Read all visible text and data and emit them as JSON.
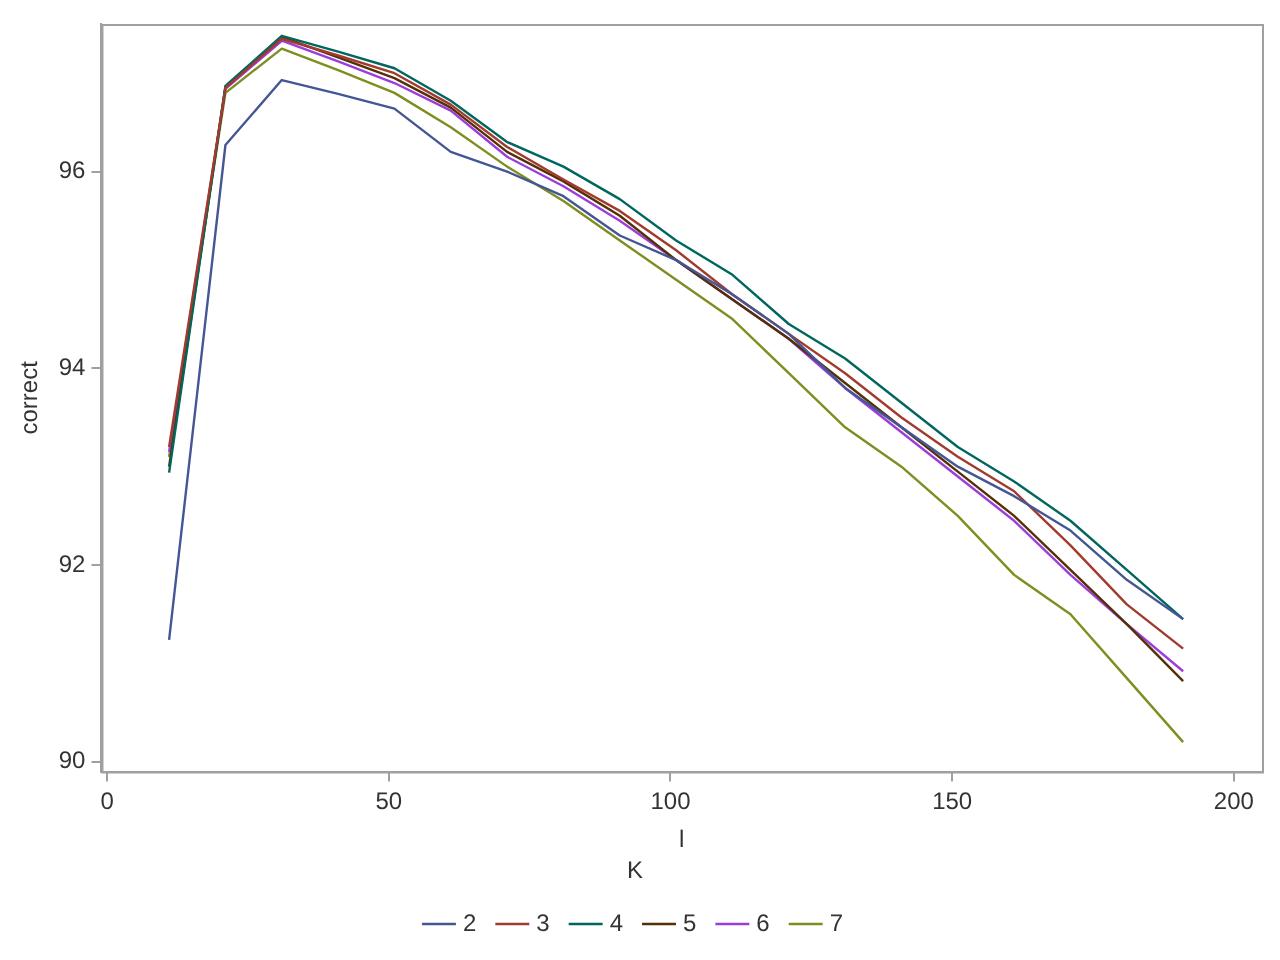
{
  "chart_data": {
    "type": "line",
    "xlabel": "l",
    "ylabel": "correct",
    "legend_title": "K",
    "legend": "bottom",
    "grid": false,
    "marker": "none",
    "line_style": "solid",
    "x": [
      11,
      21,
      31,
      41,
      51,
      61,
      71,
      81,
      91,
      101,
      111,
      121,
      131,
      141,
      151,
      161,
      171,
      181,
      191
    ],
    "xlim": [
      -1,
      205
    ],
    "xticks": [
      0,
      50,
      100,
      150,
      200
    ],
    "ylim": [
      89.9,
      97.5
    ],
    "yticks": [
      90,
      92,
      94,
      96
    ],
    "series": [
      {
        "name": "2",
        "color": "#445694",
        "values": [
          91.24,
          96.27,
          96.93,
          96.79,
          96.64,
          96.2,
          96.0,
          95.75,
          95.35,
          95.1,
          94.75,
          94.35,
          93.8,
          93.4,
          93.0,
          92.7,
          92.35,
          91.85,
          91.45
        ]
      },
      {
        "name": "3",
        "color": "#a23a2e",
        "values": [
          93.2,
          96.85,
          97.35,
          97.18,
          97.0,
          96.68,
          96.25,
          95.92,
          95.6,
          95.2,
          94.75,
          94.35,
          93.95,
          93.5,
          93.1,
          92.75,
          92.2,
          91.6,
          91.15
        ]
      },
      {
        "name": "4",
        "color": "#01665e",
        "values": [
          92.94,
          96.87,
          97.38,
          97.22,
          97.05,
          96.72,
          96.3,
          96.05,
          95.72,
          95.3,
          94.95,
          94.45,
          94.1,
          93.65,
          93.2,
          92.85,
          92.45,
          91.95,
          91.45
        ]
      },
      {
        "name": "5",
        "color": "#543005",
        "values": [
          93.0,
          96.86,
          97.37,
          97.16,
          96.95,
          96.65,
          96.2,
          95.9,
          95.55,
          95.1,
          94.7,
          94.3,
          93.85,
          93.4,
          92.95,
          92.5,
          91.95,
          91.4,
          90.82
        ]
      },
      {
        "name": "6",
        "color": "#9d3cdb",
        "values": [
          93.15,
          96.84,
          97.33,
          97.12,
          96.9,
          96.62,
          96.15,
          95.85,
          95.5,
          95.1,
          94.7,
          94.3,
          93.8,
          93.35,
          92.9,
          92.45,
          91.9,
          91.4,
          90.92
        ]
      },
      {
        "name": "7",
        "color": "#7f8e1f",
        "values": [
          93.1,
          96.8,
          97.25,
          97.03,
          96.8,
          96.45,
          96.05,
          95.7,
          95.3,
          94.9,
          94.5,
          93.95,
          93.4,
          93.0,
          92.5,
          91.9,
          91.5,
          90.85,
          90.2
        ]
      }
    ]
  }
}
